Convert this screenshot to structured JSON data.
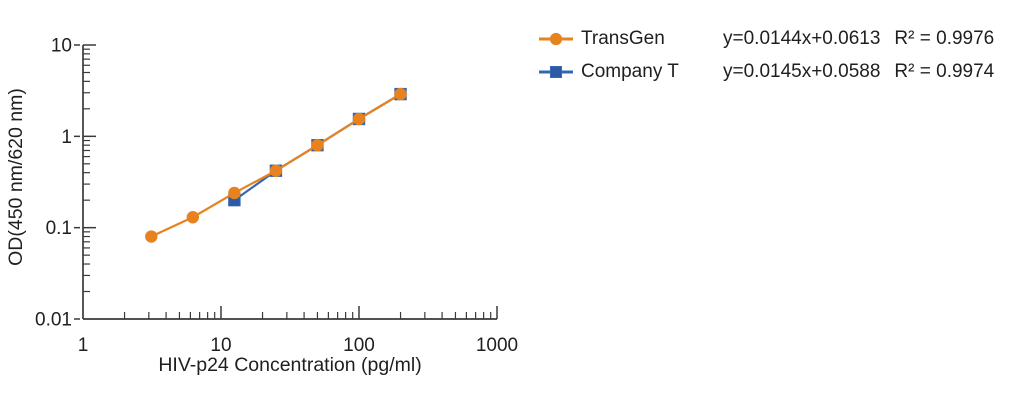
{
  "chart_data": {
    "type": "line",
    "title": "",
    "xlabel": "HIV-p24 Concentration (pg/ml)",
    "ylabel": "OD(450 nm/620 nm)",
    "x_scale": "log",
    "y_scale": "log",
    "xlim": [
      1,
      1000
    ],
    "ylim": [
      0.01,
      10
    ],
    "x_ticks": [
      1,
      10,
      100,
      1000
    ],
    "x_tick_labels": [
      "1",
      "10",
      "100",
      "1000"
    ],
    "y_ticks": [
      0.01,
      0.1,
      1,
      10
    ],
    "y_tick_labels": [
      "0.01",
      "0.1",
      "1",
      "10"
    ],
    "grid": false,
    "legend_position": "top-right",
    "series": [
      {
        "name": "TransGen",
        "marker": "circle",
        "color": "#E8821F",
        "marker_fill": "#E8821F",
        "x": [
          3.125,
          6.25,
          12.5,
          25,
          50,
          100,
          200
        ],
        "y": [
          0.08,
          0.13,
          0.24,
          0.42,
          0.8,
          1.55,
          2.9
        ],
        "equation": "y=0.0144x+0.0613",
        "r_squared": "R² = 0.9976"
      },
      {
        "name": "Company T",
        "marker": "square",
        "color": "#3568B1",
        "marker_fill": "#2C5AA4",
        "x": [
          12.5,
          25,
          50,
          100,
          200
        ],
        "y": [
          0.2,
          0.42,
          0.8,
          1.55,
          2.9
        ],
        "equation": "y=0.0145x+0.0588",
        "r_squared": "R² = 0.9974"
      }
    ],
    "style": {
      "axis_color": "#3A3A3A",
      "text_color": "#1F1F1F"
    }
  }
}
